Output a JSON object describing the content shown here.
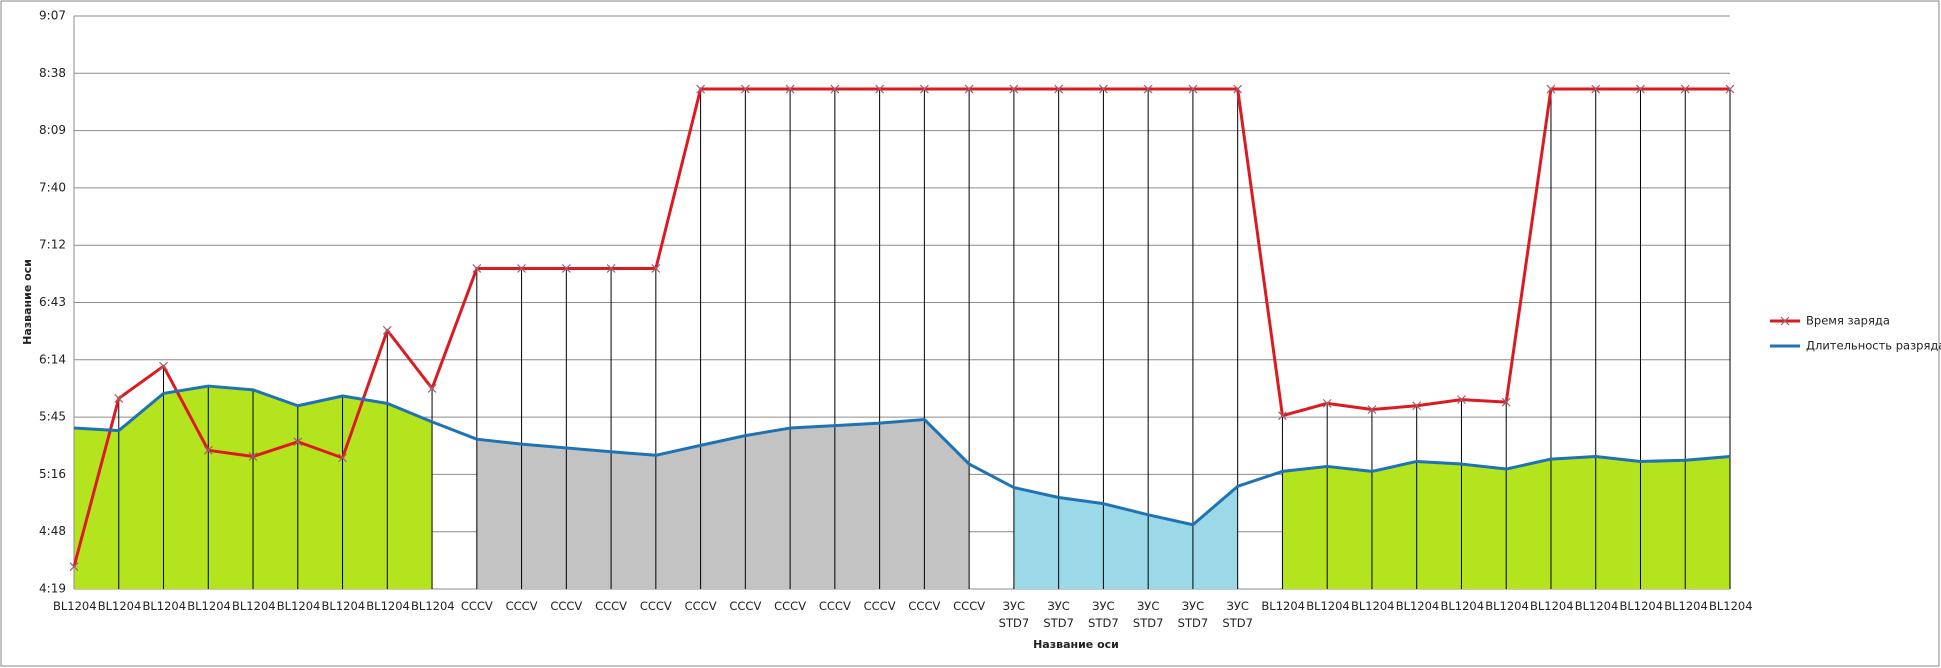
{
  "chart_data": {
    "type": "line",
    "x_label": "Название оси",
    "y_label": "Название оси",
    "categories": [
      "BL1204",
      "BL1204",
      "BL1204",
      "BL1204",
      "BL1204",
      "BL1204",
      "BL1204",
      "BL1204",
      "BL1204",
      "CCCV",
      "CCCV",
      "CCCV",
      "CCCV",
      "CCCV",
      "CCCV",
      "CCCV",
      "CCCV",
      "CCCV",
      "CCCV",
      "CCCV",
      "CCCV",
      "ЗУС STD7",
      "ЗУС STD7",
      "ЗУС STD7",
      "ЗУС STD7",
      "ЗУС STD7",
      "ЗУС STD7",
      "BL1204",
      "BL1204",
      "BL1204",
      "BL1204",
      "BL1204",
      "BL1204",
      "BL1204",
      "BL1204",
      "BL1204",
      "BL1204",
      "BL1204"
    ],
    "series": [
      {
        "name": "Время заряда",
        "color": "#dc1a22",
        "marker": "x",
        "values": [
          270.4,
          355,
          371.2,
          328.9,
          325.8,
          333.2,
          325.1,
          389.2,
          360,
          420.3,
          420.3,
          420.3,
          420.3,
          420.3,
          510.5,
          510.5,
          510.5,
          510.5,
          510.5,
          510.5,
          510.5,
          510.5,
          510.5,
          510.5,
          510.5,
          510.5,
          510.5,
          346.3,
          352.5,
          349.4,
          351.3,
          354.4,
          353.1,
          510.5,
          510.5,
          510.5,
          510.5,
          510.5
        ]
      },
      {
        "name": "Длительность разряда",
        "color": "#1f72b4",
        "area": true,
        "values": [
          340.1,
          338.8,
          357.5,
          361.2,
          359.3,
          351.3,
          356.2,
          352.5,
          343.2,
          334.5,
          332,
          330.1,
          328.2,
          326.4,
          331.4,
          336.3,
          340.1,
          341.3,
          342.6,
          344.4,
          322,
          310.2,
          305.2,
          302.1,
          296.5,
          291.5,
          310.8,
          318.3,
          320.8,
          318.3,
          323.3,
          322,
          319.5,
          324.5,
          325.8,
          323.3,
          323.9,
          325.8
        ],
        "fill_colors": [
          "#b4e41e",
          "#b4e41e",
          "#b4e41e",
          "#b4e41e",
          "#b4e41e",
          "#b4e41e",
          "#b4e41e",
          "#b4e41e",
          "#b4e41e",
          "#c3c3c3",
          "#c3c3c3",
          "#c3c3c3",
          "#c3c3c3",
          "#c3c3c3",
          "#c3c3c3",
          "#c3c3c3",
          "#c3c3c3",
          "#c3c3c3",
          "#c3c3c3",
          "#c3c3c3",
          "#c3c3c3",
          "#9bd9e8",
          "#9bd9e8",
          "#9bd9e8",
          "#9bd9e8",
          "#9bd9e8",
          "#9bd9e8",
          "#b4e41e",
          "#b4e41e",
          "#b4e41e",
          "#b4e41e",
          "#b4e41e",
          "#b4e41e",
          "#b4e41e",
          "#b4e41e",
          "#b4e41e",
          "#b4e41e",
          "#b4e41e"
        ]
      }
    ],
    "ylim": [
      259.2,
      547.2
    ],
    "yticks": [
      {
        "value": 259.2,
        "label": "4:19"
      },
      {
        "value": 288,
        "label": "4:48"
      },
      {
        "value": 316.8,
        "label": "5:16"
      },
      {
        "value": 345.6,
        "label": "5:45"
      },
      {
        "value": 374.4,
        "label": "6:14"
      },
      {
        "value": 403.2,
        "label": "6:43"
      },
      {
        "value": 432,
        "label": "7:12"
      },
      {
        "value": 460.8,
        "label": "7:40"
      },
      {
        "value": 489.6,
        "label": "8:09"
      },
      {
        "value": 518.4,
        "label": "8:38"
      },
      {
        "value": 547.2,
        "label": "9:07"
      }
    ],
    "grid": true,
    "drop_lines": true,
    "legend": "right"
  }
}
